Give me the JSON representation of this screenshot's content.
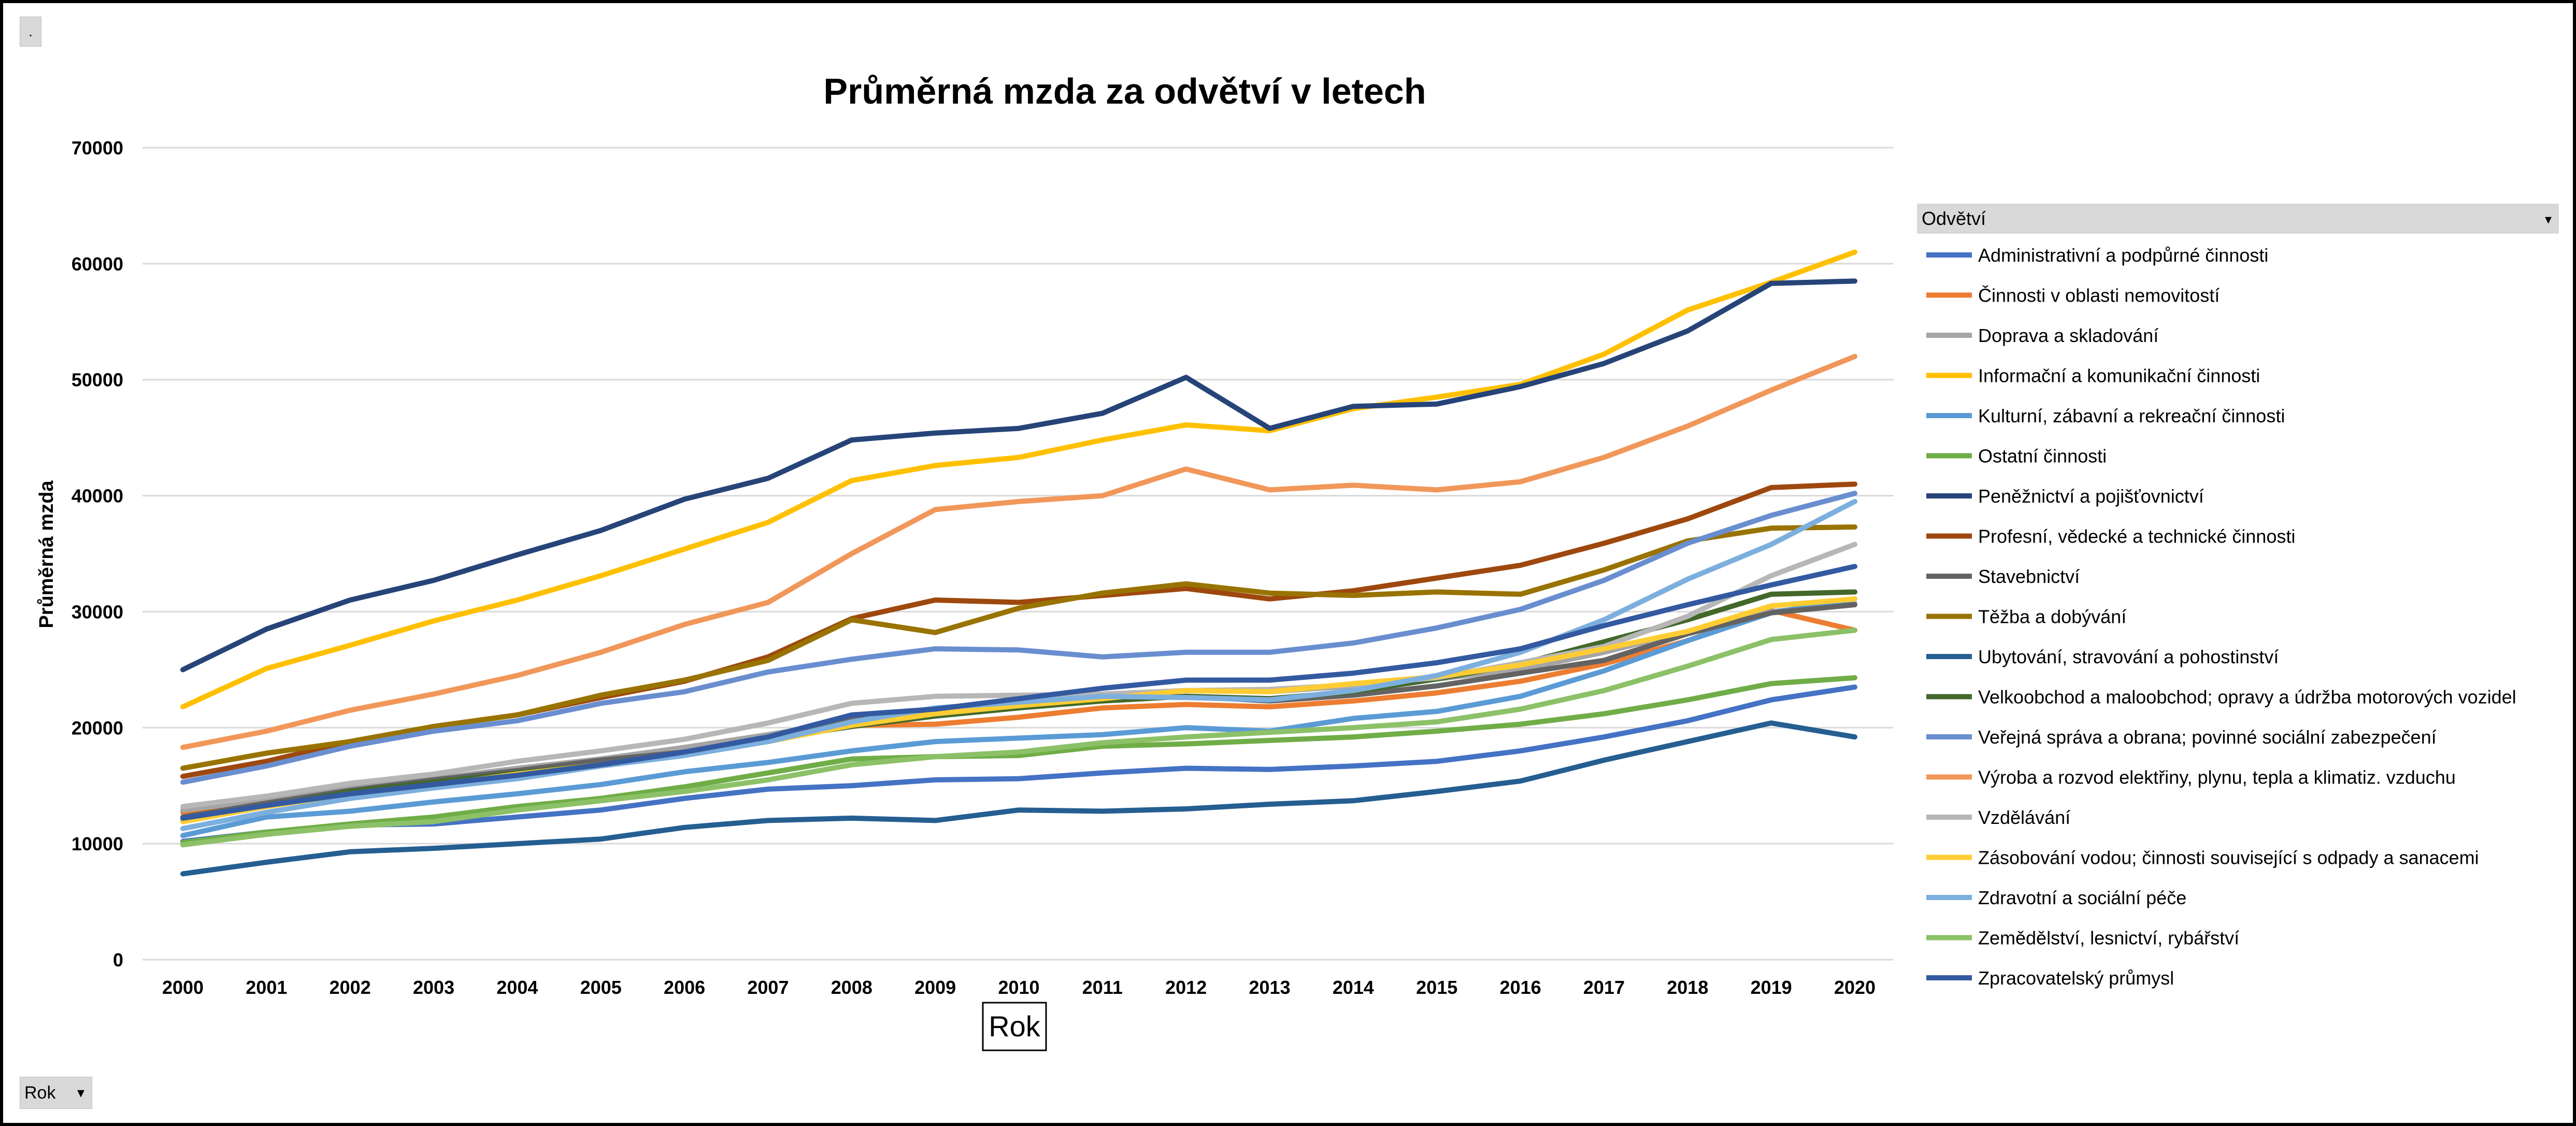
{
  "top_button": {
    "label": "."
  },
  "rok_button": {
    "label": "Rok",
    "arrow": "▾"
  },
  "chart_data": {
    "type": "line",
    "title": "Průměrná mzda za odvětví v letech",
    "xlabel": "Rok",
    "ylabel": "Průměrná mzda",
    "ylim": [
      0,
      70000
    ],
    "yticks": [
      0,
      10000,
      20000,
      30000,
      40000,
      50000,
      60000,
      70000
    ],
    "grid": true,
    "legend_position": "right",
    "legend_title": "Odvětví",
    "legend_title_arrow": "▾",
    "categories": [
      "2000",
      "2001",
      "2002",
      "2003",
      "2004",
      "2005",
      "2006",
      "2007",
      "2008",
      "2009",
      "2010",
      "2011",
      "2012",
      "2013",
      "2014",
      "2015",
      "2016",
      "2017",
      "2018",
      "2019",
      "2020"
    ],
    "series": [
      {
        "name": "Administrativní a podpůrné činnosti",
        "color": "#4472C4",
        "values": [
          10200,
          11000,
          11600,
          11700,
          12300,
          12900,
          13900,
          14700,
          15000,
          15500,
          15600,
          16100,
          16500,
          16400,
          16700,
          17100,
          18000,
          19200,
          20600,
          22400,
          23500
        ]
      },
      {
        "name": "Činnosti v oblasti nemovitostí",
        "color": "#ED7D31",
        "values": [
          12700,
          13700,
          14700,
          15500,
          16400,
          17300,
          18200,
          19300,
          20200,
          20300,
          20900,
          21700,
          22000,
          21800,
          22300,
          23000,
          24000,
          25500,
          27500,
          30100,
          28400
        ]
      },
      {
        "name": "Doprava a skladování",
        "color": "#A5A5A5",
        "values": [
          12900,
          13800,
          14800,
          15600,
          16500,
          17300,
          18300,
          19400,
          20600,
          21600,
          22300,
          22700,
          23200,
          23100,
          23600,
          24200,
          25000,
          26500,
          28300,
          30000,
          30700
        ]
      },
      {
        "name": "Informační a komunikační činnosti",
        "color": "#FFC000",
        "values": [
          21800,
          25100,
          27100,
          29200,
          31000,
          33100,
          35400,
          37700,
          41300,
          42600,
          43300,
          44800,
          46100,
          45600,
          47500,
          48500,
          49600,
          52200,
          56000,
          58400,
          61000
        ]
      },
      {
        "name": "Kulturní, zábavní a rekreační činnosti",
        "color": "#5B9BD5",
        "values": [
          10700,
          12300,
          12800,
          13600,
          14300,
          15100,
          16200,
          17000,
          18000,
          18800,
          19100,
          19400,
          20000,
          19700,
          20800,
          21400,
          22700,
          24900,
          27500,
          29900,
          31100
        ]
      },
      {
        "name": "Ostatní činnosti",
        "color": "#70AD47",
        "values": [
          10100,
          11000,
          11700,
          12300,
          13200,
          13900,
          14900,
          16100,
          17300,
          17500,
          17600,
          18400,
          18600,
          18900,
          19200,
          19700,
          20300,
          21200,
          22400,
          23800,
          24300
        ]
      },
      {
        "name": "Peněžnictví a pojišťovnictví",
        "color": "#264478",
        "values": [
          25000,
          28500,
          31000,
          32700,
          34900,
          37000,
          39700,
          41500,
          44800,
          45400,
          45800,
          47100,
          50200,
          45800,
          47700,
          47900,
          49400,
          51400,
          54200,
          58300,
          58500
        ]
      },
      {
        "name": "Profesní, vědecké a technické činnosti",
        "color": "#9E480E",
        "values": [
          15800,
          17100,
          18800,
          20100,
          21100,
          22600,
          24000,
          26100,
          29400,
          31000,
          30800,
          31400,
          32000,
          31100,
          31800,
          32900,
          34000,
          35900,
          38000,
          40700,
          41000
        ]
      },
      {
        "name": "Stavebnictví",
        "color": "#636363",
        "values": [
          12300,
          13500,
          14600,
          15500,
          16300,
          17200,
          17900,
          19100,
          20900,
          21400,
          22100,
          22400,
          22700,
          22300,
          22800,
          23600,
          24700,
          25800,
          28100,
          29900,
          30600
        ]
      },
      {
        "name": "Těžba a dobývání",
        "color": "#997300",
        "values": [
          16500,
          17800,
          18800,
          20100,
          21100,
          22800,
          24100,
          25800,
          29300,
          28200,
          30300,
          31600,
          32400,
          31600,
          31400,
          31700,
          31500,
          33600,
          36100,
          37200,
          37300
        ]
      },
      {
        "name": "Ubytování, stravování a pohostinství",
        "color": "#255E91",
        "values": [
          7400,
          8400,
          9300,
          9600,
          10000,
          10400,
          11400,
          12000,
          12200,
          12000,
          12900,
          12800,
          13000,
          13400,
          13700,
          14500,
          15400,
          17200,
          18800,
          20400,
          19200
        ]
      },
      {
        "name": "Velkoobchod a maloobchod; opravy a údržba motorových vozidel",
        "color": "#43682B",
        "values": [
          12000,
          13200,
          14500,
          15300,
          16100,
          16800,
          17700,
          19000,
          20100,
          21000,
          21700,
          22300,
          22700,
          22500,
          23100,
          24200,
          25500,
          27400,
          29300,
          31500,
          31700
        ]
      },
      {
        "name": "Veřejná správa a obrana; povinné sociální zabezpečení",
        "color": "#698ED0",
        "values": [
          15300,
          16700,
          18400,
          19700,
          20600,
          22100,
          23100,
          24800,
          25900,
          26800,
          26700,
          26100,
          26500,
          26500,
          27300,
          28600,
          30200,
          32700,
          35900,
          38300,
          40200
        ]
      },
      {
        "name": "Výroba a rozvod elektřiny, plynu, tepla a klimatiz. vzduchu",
        "color": "#F1975A",
        "values": [
          18300,
          19700,
          21500,
          22900,
          24500,
          26500,
          28900,
          30800,
          35000,
          38800,
          39500,
          40000,
          42300,
          40500,
          40900,
          40500,
          41200,
          43300,
          46000,
          49100,
          52000
        ]
      },
      {
        "name": "Vzdělávání",
        "color": "#B7B7B7",
        "values": [
          13200,
          14100,
          15200,
          16000,
          17100,
          18000,
          19000,
          20400,
          22100,
          22700,
          22800,
          22900,
          23200,
          23300,
          23700,
          24300,
          25600,
          27000,
          29600,
          33100,
          35800
        ]
      },
      {
        "name": "Zásobování vodou; činnosti související s odpady a sanacemi",
        "color": "#FFCD33",
        "values": [
          11900,
          13200,
          14300,
          15000,
          16000,
          16800,
          17800,
          18800,
          20200,
          21200,
          21900,
          22500,
          23200,
          23100,
          23800,
          24400,
          25400,
          26800,
          28300,
          30500,
          31100
        ]
      },
      {
        "name": "Zdravotní a sociální péče",
        "color": "#7CAFDD",
        "values": [
          11300,
          12700,
          13900,
          14800,
          15600,
          16700,
          17600,
          18800,
          20500,
          21700,
          22200,
          22700,
          22600,
          22400,
          23200,
          24500,
          26500,
          29300,
          32800,
          35800,
          39500
        ]
      },
      {
        "name": "Zemědělství, lesnictví, rybářství",
        "color": "#8CC168",
        "values": [
          9900,
          10800,
          11500,
          11900,
          12900,
          13700,
          14500,
          15500,
          16800,
          17500,
          17900,
          18700,
          19200,
          19600,
          20000,
          20500,
          21600,
          23200,
          25300,
          27600,
          28400
        ]
      },
      {
        "name": "Zpracovatelský průmysl",
        "color": "#335AA1",
        "values": [
          12200,
          13300,
          14300,
          15100,
          15900,
          16800,
          17900,
          19200,
          21100,
          21600,
          22500,
          23400,
          24100,
          24100,
          24700,
          25600,
          26800,
          28800,
          30600,
          32300,
          33900
        ]
      }
    ]
  }
}
